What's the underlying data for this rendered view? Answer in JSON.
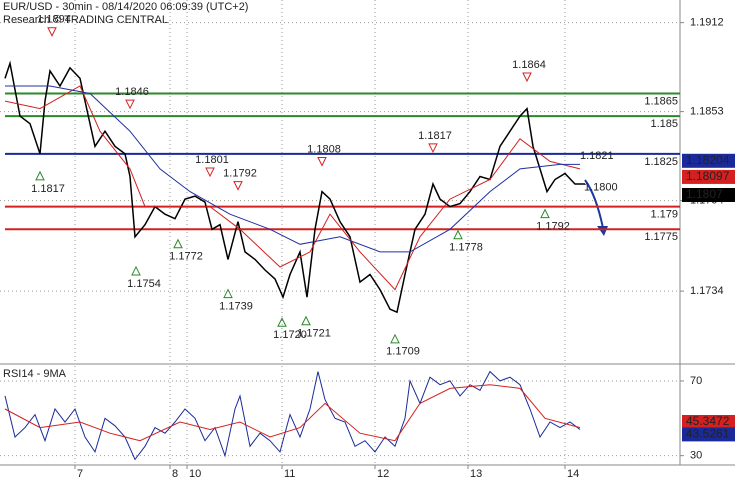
{
  "chart_data": [
    {
      "type": "line",
      "title": "EUR/USD - 30min - 08/14/2020 06:09:39 (UTC+2)",
      "subtitle": "Research © TRADING CENTRAL",
      "xlim": [
        0,
        340
      ],
      "ylim": [
        1.1687,
        1.1927
      ],
      "yticks": [
        1.1734,
        1.1794,
        1.1853,
        1.1912
      ],
      "grid": true,
      "series": [
        {
          "color": "#000000",
          "x": [
            2.5,
            5,
            10,
            15,
            20,
            22.5,
            25,
            30,
            35,
            40,
            45,
            47.5,
            52.5,
            57.5,
            62.5,
            65,
            67.5,
            72.5,
            77.5,
            82.5,
            87.5,
            92.5,
            97.5,
            102.5,
            106,
            110,
            114,
            119,
            122.5,
            127.5,
            132.5,
            137.5,
            141.5,
            145,
            150,
            153.5,
            157.5,
            161,
            165,
            170,
            175,
            180,
            185,
            190,
            195,
            198.5,
            202.5,
            207.5,
            212.5,
            216.5,
            220,
            225,
            230,
            235,
            240,
            245,
            250,
            255,
            260,
            263.5,
            266.5,
            270,
            273.5,
            277.5,
            282.5,
            287.5,
            292.5
          ],
          "values": [
            1.1875,
            1.1885,
            1.185,
            1.1845,
            1.1825,
            1.186,
            1.188,
            1.187,
            1.1882,
            1.1875,
            1.1845,
            1.183,
            1.184,
            1.183,
            1.1825,
            1.181,
            1.177,
            1.1778,
            1.179,
            1.1785,
            1.1782,
            1.1795,
            1.1797,
            1.1793,
            1.1775,
            1.1778,
            1.1755,
            1.178,
            1.176,
            1.1755,
            1.1748,
            1.1742,
            1.173,
            1.1745,
            1.176,
            1.173,
            1.1775,
            1.18,
            1.1795,
            1.178,
            1.177,
            1.174,
            1.1745,
            1.1735,
            1.1722,
            1.172,
            1.1745,
            1.1775,
            1.1785,
            1.1805,
            1.1795,
            1.179,
            1.1792,
            1.18,
            1.181,
            1.1808,
            1.183,
            1.184,
            1.185,
            1.1855,
            1.183,
            1.1815,
            1.18,
            1.1808,
            1.1812,
            1.1805,
            1.1805
          ]
        },
        {
          "color": "#d42020",
          "x": [
            2.5,
            20,
            40,
            50,
            65,
            72.5,
            90,
            105,
            120,
            140,
            155,
            165,
            180,
            197.5,
            210,
            225,
            245,
            260,
            275,
            290
          ],
          "values": [
            1.186,
            1.1855,
            1.187,
            1.184,
            1.1815,
            1.179,
            1.179,
            1.179,
            1.1775,
            1.175,
            1.176,
            1.1785,
            1.176,
            1.1735,
            1.177,
            1.1795,
            1.1808,
            1.1835,
            1.182,
            1.1815
          ]
        },
        {
          "color": "#2030a0",
          "x": [
            2.5,
            25,
            45,
            65,
            80,
            95,
            115,
            135,
            150,
            170,
            190,
            205,
            225,
            245,
            260,
            280,
            290
          ],
          "values": [
            1.187,
            1.187,
            1.1865,
            1.184,
            1.1815,
            1.18,
            1.1785,
            1.1775,
            1.1765,
            1.177,
            1.176,
            1.176,
            1.1775,
            1.18,
            1.1815,
            1.1818,
            1.1818
          ]
        }
      ],
      "levels": [
        {
          "value": 1.1865,
          "color": "#2a8a2a"
        },
        {
          "value": 1.185,
          "color": "#2a8a2a"
        },
        {
          "value": 1.1825,
          "color": "#1a2a9a"
        },
        {
          "value": 1.179,
          "color": "#d42020"
        },
        {
          "value": 1.1775,
          "color": "#d42020"
        }
      ],
      "annotations": [
        {
          "x": 26,
          "value": 1.1894,
          "label": "1.1894",
          "dir": "down"
        },
        {
          "x": 20,
          "value": 1.1817,
          "label": "1.1817",
          "dir": "up"
        },
        {
          "x": 65,
          "value": 1.1846,
          "label": "1.1846",
          "dir": "down"
        },
        {
          "x": 68,
          "value": 1.1754,
          "label": "1.1754",
          "dir": "up"
        },
        {
          "x": 89,
          "value": 1.1772,
          "label": "1.1772",
          "dir": "up"
        },
        {
          "x": 105,
          "value": 1.1801,
          "label": "1.1801",
          "dir": "down"
        },
        {
          "x": 119,
          "value": 1.1792,
          "label": "1.1792",
          "dir": "down"
        },
        {
          "x": 114,
          "value": 1.1739,
          "label": "1.1739",
          "dir": "up"
        },
        {
          "x": 141,
          "value": 1.172,
          "label": "1.1720",
          "dir": "up"
        },
        {
          "x": 153,
          "value": 1.1721,
          "label": "1.1721",
          "dir": "up"
        },
        {
          "x": 161,
          "value": 1.1808,
          "label": "1.1808",
          "dir": "down"
        },
        {
          "x": 197.5,
          "value": 1.1709,
          "label": "1.1709",
          "dir": "up"
        },
        {
          "x": 216.5,
          "value": 1.1817,
          "label": "1.1817",
          "dir": "down"
        },
        {
          "x": 229,
          "value": 1.1778,
          "label": "1.1778",
          "dir": "up"
        },
        {
          "x": 263.5,
          "value": 1.1864,
          "label": "1.1864",
          "dir": "down"
        },
        {
          "x": 272.5,
          "value": 1.1792,
          "label": "1.1792",
          "dir": "up"
        },
        {
          "x": 290,
          "value": 1.1821,
          "label": "1.1821",
          "dir": "none"
        },
        {
          "x": 292,
          "value": 1.18,
          "label": "1.1800",
          "dir": "none"
        }
      ],
      "price_tags": [
        {
          "value": 1.18204,
          "color": "#1a2a9a"
        },
        {
          "value": 1.18097,
          "color": "#d42020"
        },
        {
          "value": 1.1807,
          "color": "#000000"
        }
      ]
    },
    {
      "type": "line",
      "title": "RSI14 - 9MA",
      "xlim": [
        0,
        340
      ],
      "xticks": [
        {
          "value": 37.5,
          "label": "7"
        },
        {
          "value": 85,
          "label": "8"
        },
        {
          "value": 93.5,
          "label": "10"
        },
        {
          "value": 141,
          "label": "11"
        },
        {
          "value": 187.5,
          "label": "12"
        },
        {
          "value": 234,
          "label": "13"
        },
        {
          "value": 282.5,
          "label": "14"
        }
      ],
      "ylim": [
        25,
        78
      ],
      "yticks": [
        30,
        70
      ],
      "grid": true,
      "series": [
        {
          "color": "#1a2a9a",
          "x": [
            2.5,
            7.5,
            12.5,
            17.5,
            22.5,
            27.5,
            32.5,
            37.5,
            42.5,
            47.5,
            52.5,
            57.5,
            62.5,
            67.5,
            72.5,
            77.5,
            82.5,
            87.5,
            92.5,
            97.5,
            102.5,
            107.5,
            112.5,
            117.5,
            120,
            125,
            130,
            135,
            140,
            145,
            150,
            155,
            159,
            162.5,
            167.5,
            172.5,
            177.5,
            182.5,
            187.5,
            192.5,
            197.5,
            202.5,
            205,
            210,
            215,
            220,
            225,
            230,
            235,
            240,
            245,
            250,
            255,
            260,
            265,
            270,
            275,
            280,
            285,
            290
          ],
          "values": [
            62,
            40,
            45,
            52,
            38,
            55,
            48,
            55,
            40,
            32,
            50,
            46,
            40,
            28,
            35,
            45,
            42,
            48,
            55,
            50,
            38,
            45,
            30,
            55,
            62,
            35,
            42,
            38,
            32,
            52,
            40,
            55,
            75,
            60,
            50,
            48,
            35,
            38,
            32,
            40,
            35,
            50,
            70,
            58,
            72,
            68,
            70,
            62,
            68,
            65,
            75,
            70,
            72,
            68,
            55,
            40,
            48,
            45,
            48,
            44
          ]
        },
        {
          "color": "#d42020",
          "x": [
            2.5,
            20,
            40,
            55,
            70,
            90,
            105,
            120,
            135,
            150,
            162.5,
            180,
            197.5,
            210,
            225,
            245,
            260,
            272.5,
            290
          ],
          "values": [
            55,
            45,
            48,
            42,
            38,
            48,
            44,
            48,
            40,
            45,
            58,
            42,
            38,
            58,
            66,
            68,
            66,
            50,
            45
          ]
        }
      ],
      "price_tags": [
        {
          "value": 45.3472,
          "color": "#d42020"
        },
        {
          "value": 43.5261,
          "color": "#1a2a9a"
        }
      ]
    }
  ]
}
